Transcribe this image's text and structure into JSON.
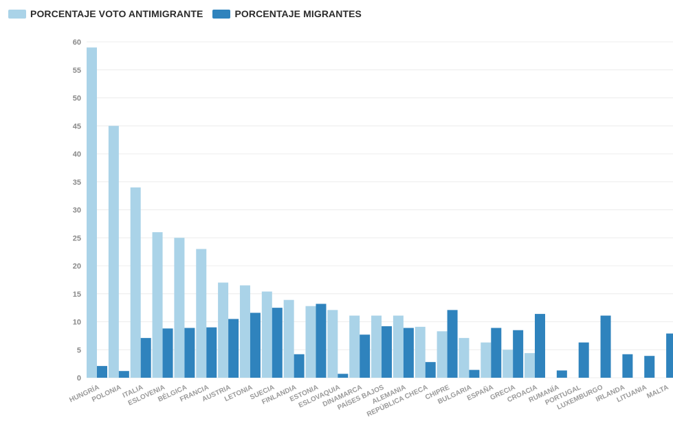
{
  "chart_data": {
    "type": "bar",
    "categories": [
      "HUNGRÍA",
      "POLONIA",
      "ITALIA",
      "ESLOVENIA",
      "BÉLGICA",
      "FRANCIA",
      "AUSTRIA",
      "LETONIA",
      "SUECIA",
      "FINLANDIA",
      "ESTONIA",
      "ESLOVAQUIA",
      "DINAMARCA",
      "PAÍSES BAJOS",
      "ALEMANIA",
      "REPÚBLICA CHECA",
      "CHIPRE",
      "BULGARIA",
      "ESPAÑA",
      "GRECIA",
      "CROACIA",
      "RUMANÍA",
      "PORTUGAL",
      "LUXEMBURGO",
      "IRLANDA",
      "LITUANIA",
      "MALTA"
    ],
    "series": [
      {
        "name": "PORCENTAJE VOTO ANTIMIGRANTE",
        "color": "#aad3e8",
        "values": [
          59,
          45,
          34,
          26,
          25,
          23,
          17,
          16.5,
          15.4,
          13.9,
          12.8,
          12.1,
          11.1,
          11.1,
          11.1,
          9.1,
          8.3,
          7.1,
          6.3,
          5.0,
          4.4,
          0,
          0,
          0,
          0,
          0,
          0
        ]
      },
      {
        "name": "PORCENTAJE MIGRANTES",
        "color": "#2f83bd",
        "values": [
          2.1,
          1.2,
          7.1,
          8.8,
          8.9,
          9.0,
          10.5,
          11.6,
          12.5,
          4.2,
          13.2,
          0.7,
          7.7,
          9.2,
          8.9,
          2.8,
          12.1,
          1.4,
          8.9,
          8.5,
          11.4,
          1.3,
          6.3,
          11.1,
          4.2,
          3.9,
          7.9
        ]
      }
    ],
    "yticks": [
      0,
      5,
      10,
      15,
      20,
      25,
      30,
      35,
      40,
      45,
      50,
      55,
      60
    ],
    "ylim": [
      0,
      60
    ],
    "grid": true,
    "legend": "top-left"
  }
}
